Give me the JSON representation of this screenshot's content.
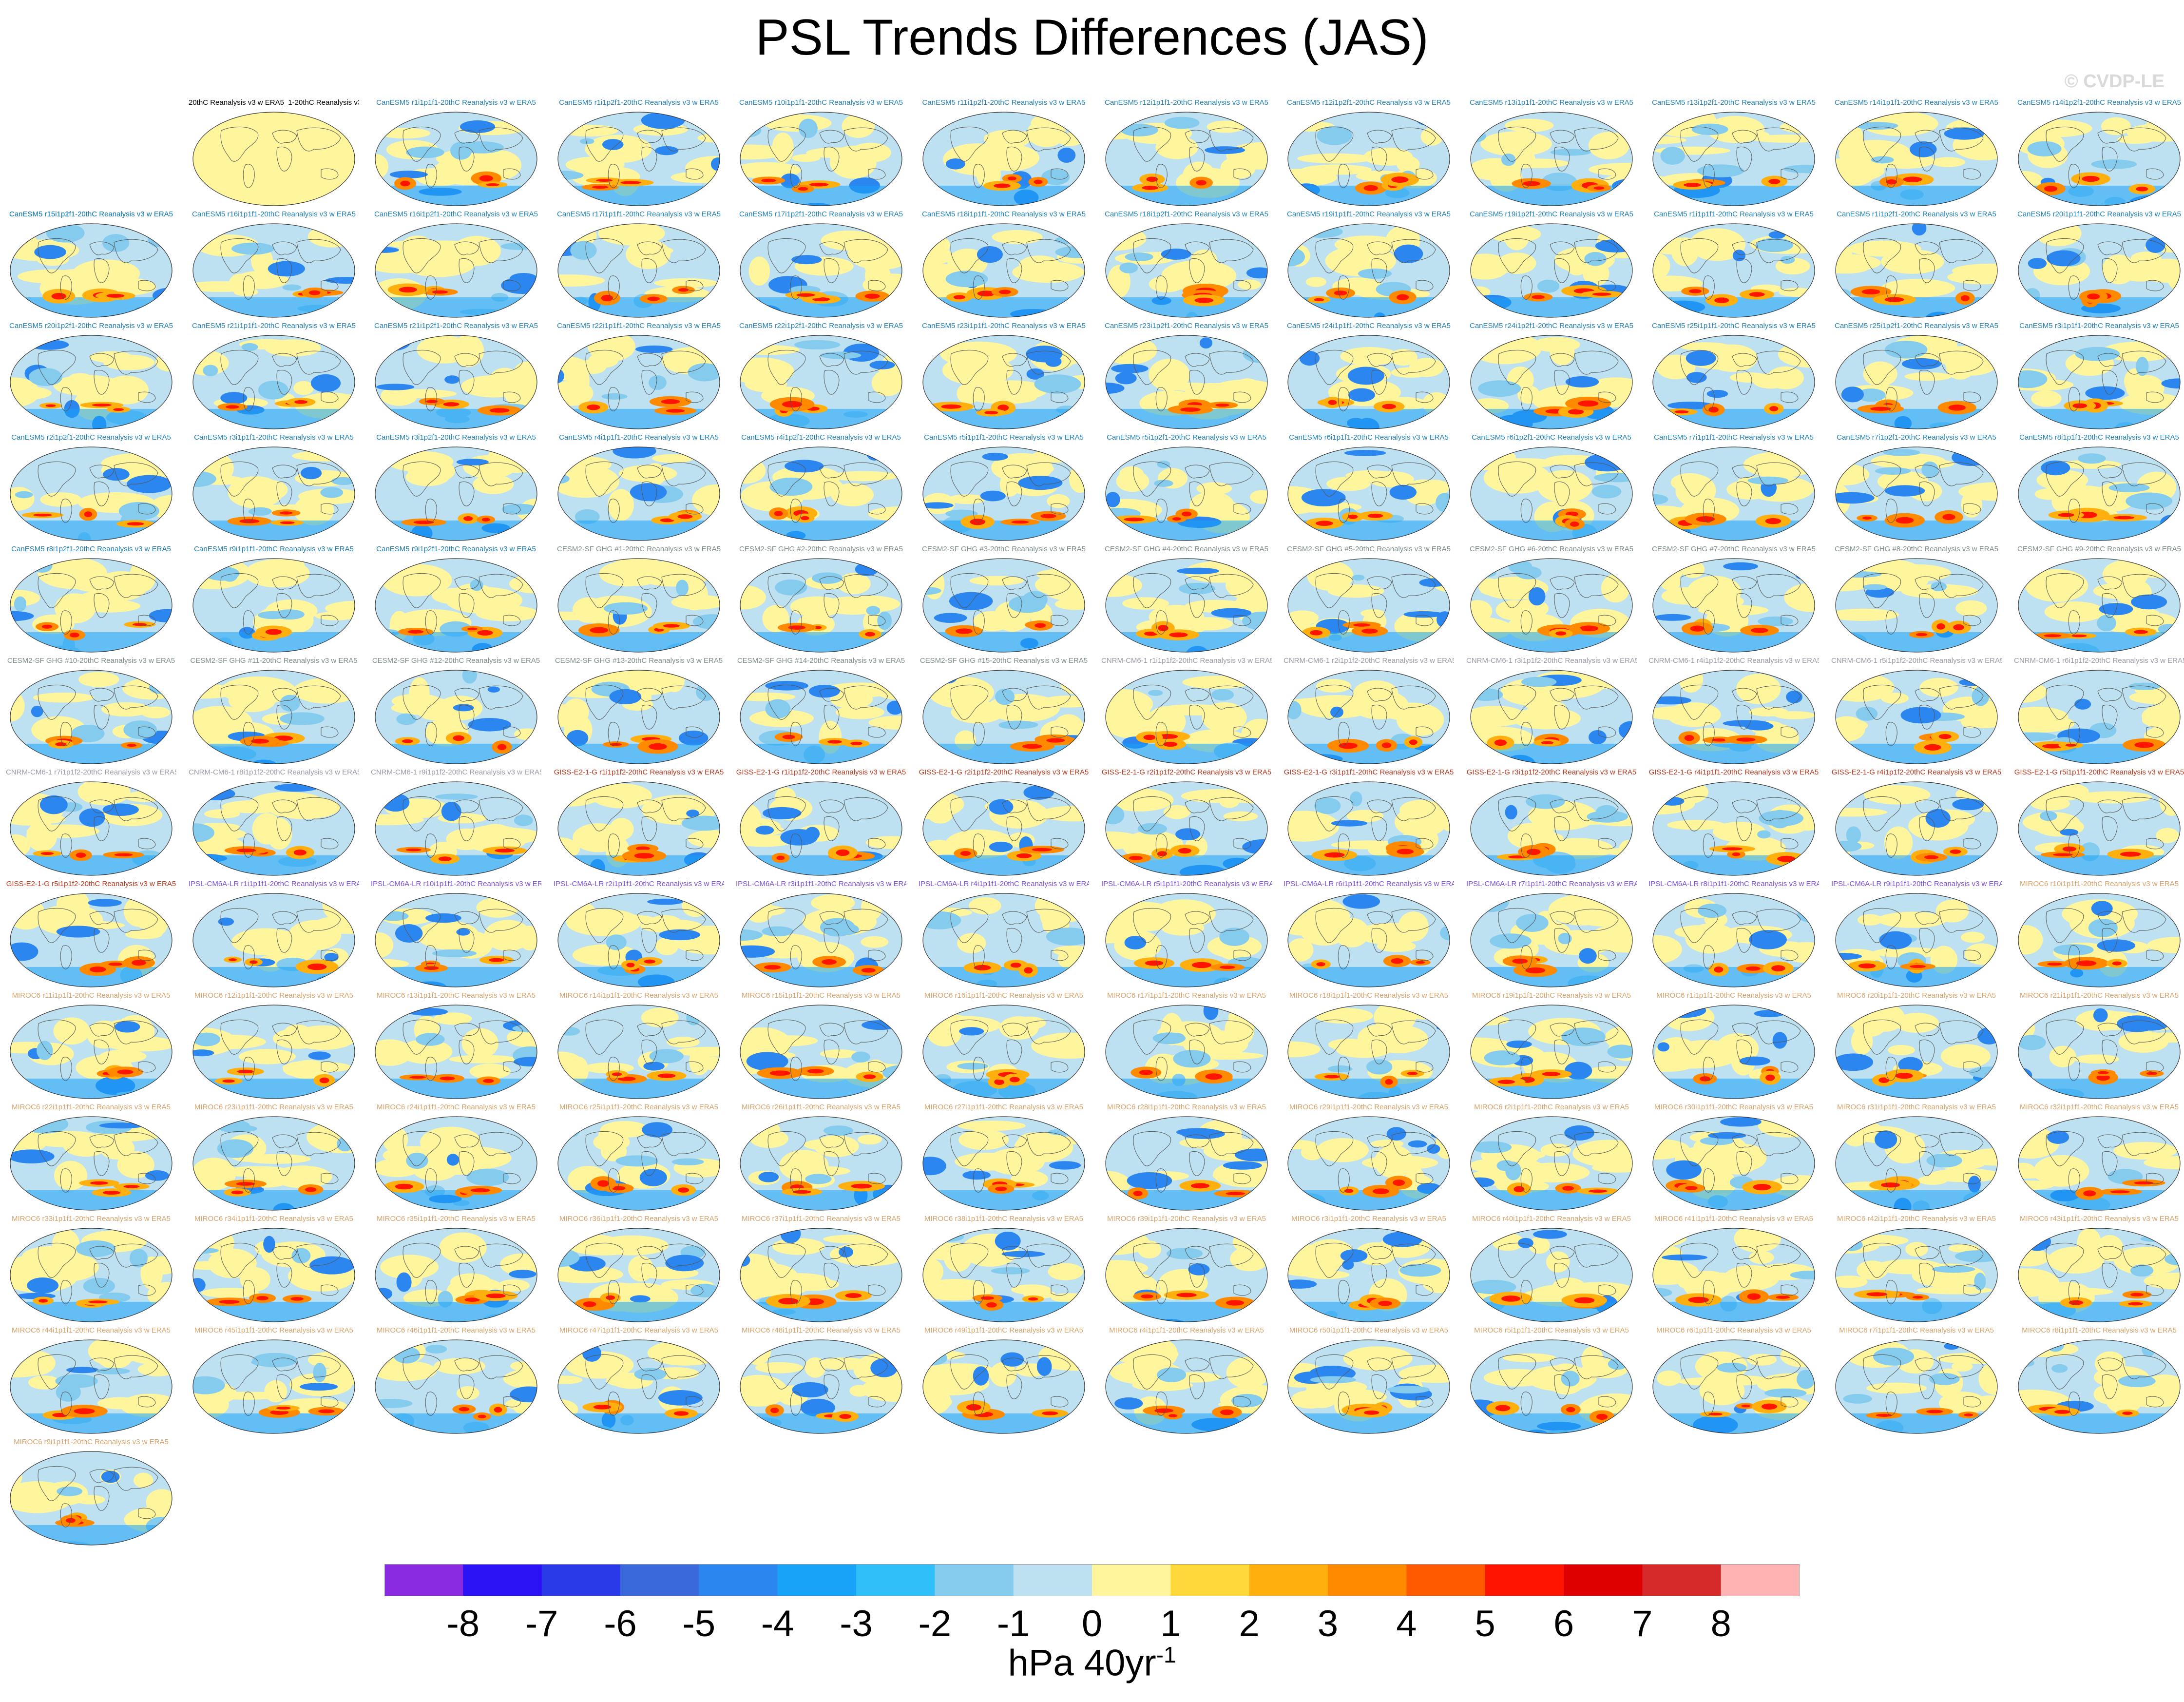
{
  "page": {
    "title": "PSL Trends Differences (JAS)",
    "watermark": "© CVDP-LE"
  },
  "chart_data": {
    "type": "heatmap",
    "title": "PSL Trends Differences (JAS)",
    "variable": "PSL",
    "season": "JAS",
    "reference": "20thC Reanalysis v3 w ERA5",
    "units_label": "hPa 40yr",
    "units_exponent": "-1",
    "colorbar": {
      "ticks": [
        "-8",
        "-7",
        "-6",
        "-5",
        "-4",
        "-3",
        "-2",
        "-1",
        "0",
        "1",
        "2",
        "3",
        "4",
        "5",
        "6",
        "7",
        "8"
      ],
      "colors": [
        "#8a2be2",
        "#2a12f5",
        "#2b3ae8",
        "#3a69dc",
        "#2c86f0",
        "#17a3f8",
        "#2fc0fa",
        "#84cbee",
        "#bde1f1",
        "#fff59d",
        "#ffd83a",
        "#ffb00f",
        "#ff8a00",
        "#ff5a00",
        "#ff1400",
        "#de0000",
        "#d62a2a",
        "#ffb3b3"
      ]
    },
    "panels": [
      {
        "title": "20thC Reanalysis v3 w ERA5_1-20thC Reanalysis v3 w ERA5",
        "group": "obs"
      },
      {
        "title": "CanESM5 r1i1p1f1-20thC Reanalysis v3 w ERA5",
        "group": "canesm"
      },
      {
        "title": "CanESM5 r1i1p2f1-20thC Reanalysis v3 w ERA5",
        "group": "canesm"
      },
      {
        "title": "CanESM5 r10i1p1f1-20thC Reanalysis v3 w ERA5",
        "group": "canesm"
      },
      {
        "title": "CanESM5 r11i1p2f1-20thC Reanalysis v3 w ERA5",
        "group": "canesm"
      },
      {
        "title": "CanESM5 r12i1p1f1-20thC Reanalysis v3 w ERA5",
        "group": "canesm"
      },
      {
        "title": "CanESM5 r12i1p2f1-20thC Reanalysis v3 w ERA5",
        "group": "canesm"
      },
      {
        "title": "CanESM5 r13i1p1f1-20thC Reanalysis v3 w ERA5",
        "group": "canesm"
      },
      {
        "title": "CanESM5 r13i1p2f1-20thC Reanalysis v3 w ERA5",
        "group": "canesm"
      },
      {
        "title": "CanESM5 r14i1p1f1-20thC Reanalysis v3 w ERA5",
        "group": "canesm"
      },
      {
        "title": "CanESM5 r14i1p2f1-20thC Reanalysis v3 w ERA5",
        "group": "canesm"
      },
      {
        "title": "CanESM5 r15i1p1f1-20thC Reanalysis v3 w ERA5",
        "group": "canesm"
      },
      {
        "title": "CanESM5 r15i1p2f1-20thC Reanalysis v3 w ERA5",
        "group": "canesm"
      },
      {
        "title": "CanESM5 r16i1p1f1-20thC Reanalysis v3 w ERA5",
        "group": "canesm"
      },
      {
        "title": "CanESM5 r16i1p2f1-20thC Reanalysis v3 w ERA5",
        "group": "canesm"
      },
      {
        "title": "CanESM5 r17i1p1f1-20thC Reanalysis v3 w ERA5",
        "group": "canesm"
      },
      {
        "title": "CanESM5 r17i1p2f1-20thC Reanalysis v3 w ERA5",
        "group": "canesm"
      },
      {
        "title": "CanESM5 r18i1p1f1-20thC Reanalysis v3 w ERA5",
        "group": "canesm"
      },
      {
        "title": "CanESM5 r18i1p2f1-20thC Reanalysis v3 w ERA5",
        "group": "canesm"
      },
      {
        "title": "CanESM5 r19i1p1f1-20thC Reanalysis v3 w ERA5",
        "group": "canesm"
      },
      {
        "title": "CanESM5 r19i1p2f1-20thC Reanalysis v3 w ERA5",
        "group": "canesm"
      },
      {
        "title": "CanESM5 r1i1p1f1-20thC Reanalysis v3 w ERA5",
        "group": "canesm"
      },
      {
        "title": "CanESM5 r1i1p2f1-20thC Reanalysis v3 w ERA5",
        "group": "canesm"
      },
      {
        "title": "CanESM5 r20i1p1f1-20thC Reanalysis v3 w ERA5",
        "group": "canesm"
      },
      {
        "title": "CanESM5 r20i1p2f1-20thC Reanalysis v3 w ERA5",
        "group": "canesm"
      },
      {
        "title": "CanESM5 r21i1p1f1-20thC Reanalysis v3 w ERA5",
        "group": "canesm"
      },
      {
        "title": "CanESM5 r21i1p2f1-20thC Reanalysis v3 w ERA5",
        "group": "canesm"
      },
      {
        "title": "CanESM5 r22i1p1f1-20thC Reanalysis v3 w ERA5",
        "group": "canesm"
      },
      {
        "title": "CanESM5 r22i1p2f1-20thC Reanalysis v3 w ERA5",
        "group": "canesm"
      },
      {
        "title": "CanESM5 r23i1p1f1-20thC Reanalysis v3 w ERA5",
        "group": "canesm"
      },
      {
        "title": "CanESM5 r23i1p2f1-20thC Reanalysis v3 w ERA5",
        "group": "canesm"
      },
      {
        "title": "CanESM5 r24i1p1f1-20thC Reanalysis v3 w ERA5",
        "group": "canesm"
      },
      {
        "title": "CanESM5 r24i1p2f1-20thC Reanalysis v3 w ERA5",
        "group": "canesm"
      },
      {
        "title": "CanESM5 r25i1p1f1-20thC Reanalysis v3 w ERA5",
        "group": "canesm"
      },
      {
        "title": "CanESM5 r25i1p2f1-20thC Reanalysis v3 w ERA5",
        "group": "canesm"
      },
      {
        "title": "CanESM5 r3i1p1f1-20thC Reanalysis v3 w ERA5",
        "group": "canesm"
      },
      {
        "title": "CanESM5 r2i1p2f1-20thC Reanalysis v3 w ERA5",
        "group": "canesm"
      },
      {
        "title": "CanESM5 r3i1p1f1-20thC Reanalysis v3 w ERA5",
        "group": "canesm"
      },
      {
        "title": "CanESM5 r3i1p2f1-20thC Reanalysis v3 w ERA5",
        "group": "canesm"
      },
      {
        "title": "CanESM5 r4i1p1f1-20thC Reanalysis v3 w ERA5",
        "group": "canesm"
      },
      {
        "title": "CanESM5 r4i1p2f1-20thC Reanalysis v3 w ERA5",
        "group": "canesm"
      },
      {
        "title": "CanESM5 r5i1p1f1-20thC Reanalysis v3 w ERA5",
        "group": "canesm"
      },
      {
        "title": "CanESM5 r5i1p2f1-20thC Reanalysis v3 w ERA5",
        "group": "canesm"
      },
      {
        "title": "CanESM5 r6i1p1f1-20thC Reanalysis v3 w ERA5",
        "group": "canesm"
      },
      {
        "title": "CanESM5 r6i1p2f1-20thC Reanalysis v3 w ERA5",
        "group": "canesm"
      },
      {
        "title": "CanESM5 r7i1p1f1-20thC Reanalysis v3 w ERA5",
        "group": "canesm"
      },
      {
        "title": "CanESM5 r7i1p2f1-20thC Reanalysis v3 w ERA5",
        "group": "canesm"
      },
      {
        "title": "CanESM5 r8i1p1f1-20thC Reanalysis v3 w ERA5",
        "group": "canesm"
      },
      {
        "title": "CanESM5 r8i1p2f1-20thC Reanalysis v3 w ERA5",
        "group": "canesm"
      },
      {
        "title": "CanESM5 r9i1p1f1-20thC Reanalysis v3 w ERA5",
        "group": "canesm"
      },
      {
        "title": "CanESM5 r9i1p2f1-20thC Reanalysis v3 w ERA5",
        "group": "canesm"
      },
      {
        "title": "CESM2-SF GHG #1-20thC Reanalysis v3 w ERA5",
        "group": "cesm"
      },
      {
        "title": "CESM2-SF GHG #2-20thC Reanalysis v3 w ERA5",
        "group": "cesm"
      },
      {
        "title": "CESM2-SF GHG #3-20thC Reanalysis v3 w ERA5",
        "group": "cesm"
      },
      {
        "title": "CESM2-SF GHG #4-20thC Reanalysis v3 w ERA5",
        "group": "cesm"
      },
      {
        "title": "CESM2-SF GHG #5-20thC Reanalysis v3 w ERA5",
        "group": "cesm"
      },
      {
        "title": "CESM2-SF GHG #6-20thC Reanalysis v3 w ERA5",
        "group": "cesm"
      },
      {
        "title": "CESM2-SF GHG #7-20thC Reanalysis v3 w ERA5",
        "group": "cesm"
      },
      {
        "title": "CESM2-SF GHG #8-20thC Reanalysis v3 w ERA5",
        "group": "cesm"
      },
      {
        "title": "CESM2-SF GHG #9-20thC Reanalysis v3 w ERA5",
        "group": "cesm"
      },
      {
        "title": "CESM2-SF GHG #10-20thC Reanalysis v3 w ERA5",
        "group": "cesm"
      },
      {
        "title": "CESM2-SF GHG #11-20thC Reanalysis v3 w ERA5",
        "group": "cesm"
      },
      {
        "title": "CESM2-SF GHG #12-20thC Reanalysis v3 w ERA5",
        "group": "cesm"
      },
      {
        "title": "CESM2-SF GHG #13-20thC Reanalysis v3 w ERA5",
        "group": "cesm"
      },
      {
        "title": "CESM2-SF GHG #14-20thC Reanalysis v3 w ERA5",
        "group": "cesm"
      },
      {
        "title": "CESM2-SF GHG #15-20thC Reanalysis v3 w ERA5",
        "group": "cesm"
      },
      {
        "title": "CNRM-CM6-1 r1i1p1f2-20thC Reanalysis v3 w ERA5",
        "group": "cnrm"
      },
      {
        "title": "CNRM-CM6-1 r2i1p1f2-20thC Reanalysis v3 w ERA5",
        "group": "cnrm"
      },
      {
        "title": "CNRM-CM6-1 r3i1p1f2-20thC Reanalysis v3 w ERA5",
        "group": "cnrm"
      },
      {
        "title": "CNRM-CM6-1 r4i1p1f2-20thC Reanalysis v3 w ERA5",
        "group": "cnrm"
      },
      {
        "title": "CNRM-CM6-1 r5i1p1f2-20thC Reanalysis v3 w ERA5",
        "group": "cnrm"
      },
      {
        "title": "CNRM-CM6-1 r6i1p1f2-20thC Reanalysis v3 w ERA5",
        "group": "cnrm"
      },
      {
        "title": "CNRM-CM6-1 r7i1p1f2-20thC Reanalysis v3 w ERA5",
        "group": "cnrm"
      },
      {
        "title": "CNRM-CM6-1 r8i1p1f2-20thC Reanalysis v3 w ERA5",
        "group": "cnrm"
      },
      {
        "title": "CNRM-CM6-1 r9i1p1f2-20thC Reanalysis v3 w ERA5",
        "group": "cnrm"
      },
      {
        "title": "GISS-E2-1-G r1i1p1f2-20thC Reanalysis v3 w ERA5",
        "group": "giss"
      },
      {
        "title": "GISS-E2-1-G r1i1p1f2-20thC Reanalysis v3 w ERA5",
        "group": "giss"
      },
      {
        "title": "GISS-E2-1-G r2i1p1f2-20thC Reanalysis v3 w ERA5",
        "group": "giss"
      },
      {
        "title": "GISS-E2-1-G r2i1p1f2-20thC Reanalysis v3 w ERA5",
        "group": "giss"
      },
      {
        "title": "GISS-E2-1-G r3i1p1f1-20thC Reanalysis v3 w ERA5",
        "group": "giss"
      },
      {
        "title": "GISS-E2-1-G r3i1p1f2-20thC Reanalysis v3 w ERA5",
        "group": "giss"
      },
      {
        "title": "GISS-E2-1-G r4i1p1f1-20thC Reanalysis v3 w ERA5",
        "group": "giss"
      },
      {
        "title": "GISS-E2-1-G r4i1p1f2-20thC Reanalysis v3 w ERA5",
        "group": "giss"
      },
      {
        "title": "GISS-E2-1-G r5i1p1f1-20thC Reanalysis v3 w ERA5",
        "group": "giss"
      },
      {
        "title": "GISS-E2-1-G r5i1p1f2-20thC Reanalysis v3 w ERA5",
        "group": "giss"
      },
      {
        "title": "IPSL-CM6A-LR r1i1p1f1-20thC Reanalysis v3 w ERA5",
        "group": "ipsl"
      },
      {
        "title": "IPSL-CM6A-LR r10i1p1f1-20thC Reanalysis v3 w ERA5",
        "group": "ipsl"
      },
      {
        "title": "IPSL-CM6A-LR r2i1p1f1-20thC Reanalysis v3 w ERA5",
        "group": "ipsl"
      },
      {
        "title": "IPSL-CM6A-LR r3i1p1f1-20thC Reanalysis v3 w ERA5",
        "group": "ipsl"
      },
      {
        "title": "IPSL-CM6A-LR r4i1p1f1-20thC Reanalysis v3 w ERA5",
        "group": "ipsl"
      },
      {
        "title": "IPSL-CM6A-LR r5i1p1f1-20thC Reanalysis v3 w ERA5",
        "group": "ipsl"
      },
      {
        "title": "IPSL-CM6A-LR r6i1p1f1-20thC Reanalysis v3 w ERA5",
        "group": "ipsl"
      },
      {
        "title": "IPSL-CM6A-LR r7i1p1f1-20thC Reanalysis v3 w ERA5",
        "group": "ipsl"
      },
      {
        "title": "IPSL-CM6A-LR r8i1p1f1-20thC Reanalysis v3 w ERA5",
        "group": "ipsl"
      },
      {
        "title": "IPSL-CM6A-LR r9i1p1f1-20thC Reanalysis v3 w ERA5",
        "group": "ipsl"
      },
      {
        "title": "MIROC6 r10i1p1f1-20thC Reanalysis v3 w ERA5",
        "group": "miroc"
      },
      {
        "title": "MIROC6 r11i1p1f1-20thC Reanalysis v3 w ERA5",
        "group": "miroc"
      },
      {
        "title": "MIROC6 r12i1p1f1-20thC Reanalysis v3 w ERA5",
        "group": "miroc"
      },
      {
        "title": "MIROC6 r13i1p1f1-20thC Reanalysis v3 w ERA5",
        "group": "miroc"
      },
      {
        "title": "MIROC6 r14i1p1f1-20thC Reanalysis v3 w ERA5",
        "group": "miroc"
      },
      {
        "title": "MIROC6 r15i1p1f1-20thC Reanalysis v3 w ERA5",
        "group": "miroc"
      },
      {
        "title": "MIROC6 r16i1p1f1-20thC Reanalysis v3 w ERA5",
        "group": "miroc"
      },
      {
        "title": "MIROC6 r17i1p1f1-20thC Reanalysis v3 w ERA5",
        "group": "miroc"
      },
      {
        "title": "MIROC6 r18i1p1f1-20thC Reanalysis v3 w ERA5",
        "group": "miroc"
      },
      {
        "title": "MIROC6 r19i1p1f1-20thC Reanalysis v3 w ERA5",
        "group": "miroc"
      },
      {
        "title": "MIROC6 r1i1p1f1-20thC Reanalysis v3 w ERA5",
        "group": "miroc"
      },
      {
        "title": "MIROC6 r20i1p1f1-20thC Reanalysis v3 w ERA5",
        "group": "miroc"
      },
      {
        "title": "MIROC6 r21i1p1f1-20thC Reanalysis v3 w ERA5",
        "group": "miroc"
      },
      {
        "title": "MIROC6 r22i1p1f1-20thC Reanalysis v3 w ERA5",
        "group": "miroc"
      },
      {
        "title": "MIROC6 r23i1p1f1-20thC Reanalysis v3 w ERA5",
        "group": "miroc"
      },
      {
        "title": "MIROC6 r24i1p1f1-20thC Reanalysis v3 w ERA5",
        "group": "miroc"
      },
      {
        "title": "MIROC6 r25i1p1f1-20thC Reanalysis v3 w ERA5",
        "group": "miroc"
      },
      {
        "title": "MIROC6 r26i1p1f1-20thC Reanalysis v3 w ERA5",
        "group": "miroc"
      },
      {
        "title": "MIROC6 r27i1p1f1-20thC Reanalysis v3 w ERA5",
        "group": "miroc"
      },
      {
        "title": "MIROC6 r28i1p1f1-20thC Reanalysis v3 w ERA5",
        "group": "miroc"
      },
      {
        "title": "MIROC6 r29i1p1f1-20thC Reanalysis v3 w ERA5",
        "group": "miroc"
      },
      {
        "title": "MIROC6 r2i1p1f1-20thC Reanalysis v3 w ERA5",
        "group": "miroc"
      },
      {
        "title": "MIROC6 r30i1p1f1-20thC Reanalysis v3 w ERA5",
        "group": "miroc"
      },
      {
        "title": "MIROC6 r31i1p1f1-20thC Reanalysis v3 w ERA5",
        "group": "miroc"
      },
      {
        "title": "MIROC6 r32i1p1f1-20thC Reanalysis v3 w ERA5",
        "group": "miroc"
      },
      {
        "title": "MIROC6 r33i1p1f1-20thC Reanalysis v3 w ERA5",
        "group": "miroc"
      },
      {
        "title": "MIROC6 r34i1p1f1-20thC Reanalysis v3 w ERA5",
        "group": "miroc"
      },
      {
        "title": "MIROC6 r35i1p1f1-20thC Reanalysis v3 w ERA5",
        "group": "miroc"
      },
      {
        "title": "MIROC6 r36i1p1f1-20thC Reanalysis v3 w ERA5",
        "group": "miroc"
      },
      {
        "title": "MIROC6 r37i1p1f1-20thC Reanalysis v3 w ERA5",
        "group": "miroc"
      },
      {
        "title": "MIROC6 r38i1p1f1-20thC Reanalysis v3 w ERA5",
        "group": "miroc"
      },
      {
        "title": "MIROC6 r39i1p1f1-20thC Reanalysis v3 w ERA5",
        "group": "miroc"
      },
      {
        "title": "MIROC6 r3i1p1f1-20thC Reanalysis v3 w ERA5",
        "group": "miroc"
      },
      {
        "title": "MIROC6 r40i1p1f1-20thC Reanalysis v3 w ERA5",
        "group": "miroc"
      },
      {
        "title": "MIROC6 r41i1p1f1-20thC Reanalysis v3 w ERA5",
        "group": "miroc"
      },
      {
        "title": "MIROC6 r42i1p1f1-20thC Reanalysis v3 w ERA5",
        "group": "miroc"
      },
      {
        "title": "MIROC6 r43i1p1f1-20thC Reanalysis v3 w ERA5",
        "group": "miroc"
      },
      {
        "title": "MIROC6 r44i1p1f1-20thC Reanalysis v3 w ERA5",
        "group": "miroc"
      },
      {
        "title": "MIROC6 r45i1p1f1-20thC Reanalysis v3 w ERA5",
        "group": "miroc"
      },
      {
        "title": "MIROC6 r46i1p1f1-20thC Reanalysis v3 w ERA5",
        "group": "miroc"
      },
      {
        "title": "MIROC6 r47i1p1f1-20thC Reanalysis v3 w ERA5",
        "group": "miroc"
      },
      {
        "title": "MIROC6 r48i1p1f1-20thC Reanalysis v3 w ERA5",
        "group": "miroc"
      },
      {
        "title": "MIROC6 r49i1p1f1-20thC Reanalysis v3 w ERA5",
        "group": "miroc"
      },
      {
        "title": "MIROC6 r4i1p1f1-20thC Reanalysis v3 w ERA5",
        "group": "miroc"
      },
      {
        "title": "MIROC6 r50i1p1f1-20thC Reanalysis v3 w ERA5",
        "group": "miroc"
      },
      {
        "title": "MIROC6 r5i1p1f1-20thC Reanalysis v3 w ERA5",
        "group": "miroc"
      },
      {
        "title": "MIROC6 r6i1p1f1-20thC Reanalysis v3 w ERA5",
        "group": "miroc"
      },
      {
        "title": "MIROC6 r7i1p1f1-20thC Reanalysis v3 w ERA5",
        "group": "miroc"
      },
      {
        "title": "MIROC6 r8i1p1f1-20thC Reanalysis v3 w ERA5",
        "group": "miroc"
      },
      {
        "title": "MIROC6 r9i1p1f1-20thC Reanalysis v3 w ERA5",
        "group": "miroc"
      }
    ]
  },
  "group_colors": {
    "obs": "#000000",
    "canesm": "#1f7fb3",
    "cesm": "#7e8c8c",
    "cnrm": "#9a9aa8",
    "giss": "#b5351d",
    "ipsl": "#7b4fd1",
    "miroc": "#d6a26a"
  }
}
